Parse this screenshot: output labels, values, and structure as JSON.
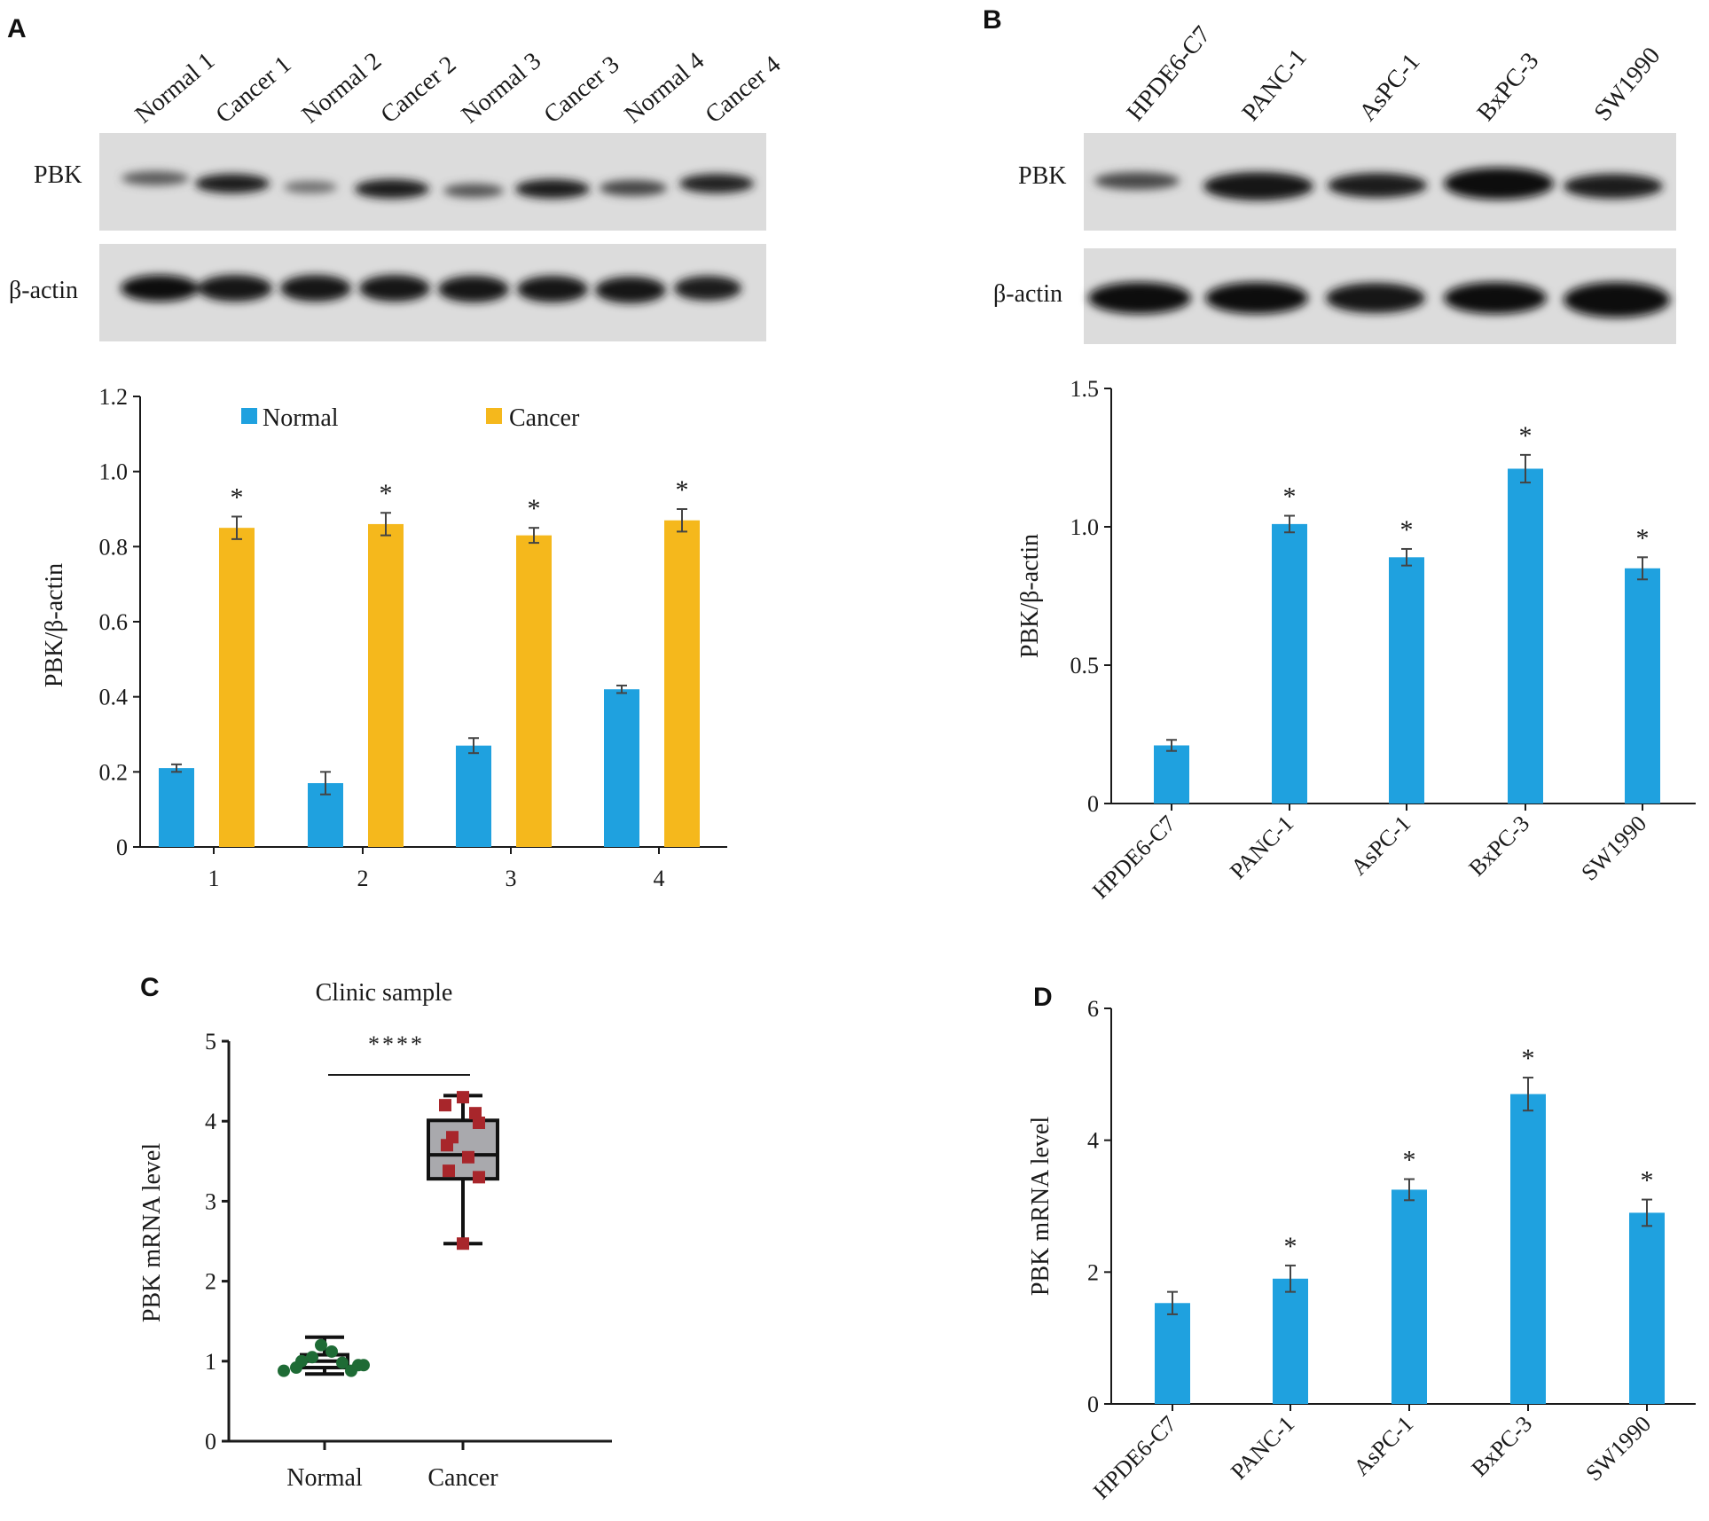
{
  "panels": {
    "A": {
      "letter": "A",
      "blot": {
        "lanes": [
          "Normal 1",
          "Cancer 1",
          "Normal 2",
          "Cancer 2",
          "Normal 3",
          "Cancer 3",
          "Normal 4",
          "Cancer 4"
        ],
        "rows": [
          "PBK",
          "β-actin"
        ]
      },
      "legend": [
        "Normal",
        "Cancer"
      ]
    },
    "B": {
      "letter": "B",
      "blot": {
        "lanes": [
          "HPDE6-C7",
          "PANC-1",
          "AsPC-1",
          "BxPC-3",
          "SW1990"
        ],
        "rows": [
          "PBK",
          "β-actin"
        ]
      }
    },
    "C": {
      "letter": "C"
    },
    "D": {
      "letter": "D"
    }
  },
  "colors": {
    "normal": "#1fa1df",
    "cancer": "#f5b81c",
    "box_fill": "#a9a9ad",
    "normal_dots": "#1e6b35",
    "cancer_dots": "#a8262b"
  },
  "chart_data": [
    {
      "panel": "A",
      "type": "bar",
      "title": "",
      "xlabel": "",
      "ylabel": "PBK/β-actin",
      "categories": [
        "1",
        "2",
        "3",
        "4"
      ],
      "series": [
        {
          "name": "Normal",
          "values": [
            0.21,
            0.17,
            0.27,
            0.42
          ],
          "errors": [
            0.01,
            0.03,
            0.02,
            0.01
          ]
        },
        {
          "name": "Cancer",
          "values": [
            0.85,
            0.86,
            0.83,
            0.87
          ],
          "errors": [
            0.03,
            0.03,
            0.02,
            0.03
          ]
        }
      ],
      "significance": [
        "*",
        "*",
        "*",
        "*"
      ],
      "ylim": [
        0,
        1.2
      ],
      "yticks": [
        "0",
        "0.2",
        "0.4",
        "0.6",
        "0.8",
        "1.0",
        "1.2"
      ],
      "legend": "top"
    },
    {
      "panel": "B",
      "type": "bar",
      "title": "",
      "xlabel": "",
      "ylabel": "PBK/β-actin",
      "categories": [
        "HPDE6-C7",
        "PANC-1",
        "AsPC-1",
        "BxPC-3",
        "SW1990"
      ],
      "values": [
        0.21,
        1.01,
        0.89,
        1.21,
        0.85
      ],
      "errors": [
        0.02,
        0.03,
        0.03,
        0.05,
        0.04
      ],
      "significance": [
        "",
        "*",
        "*",
        "*",
        "*"
      ],
      "ylim": [
        0,
        1.5
      ],
      "yticks": [
        "0",
        "0.5",
        "1.0",
        "1.5"
      ]
    },
    {
      "panel": "C",
      "type": "box",
      "title": "Clinic sample",
      "xlabel": "",
      "ylabel": "PBK mRNA level",
      "categories": [
        "Normal",
        "Cancer"
      ],
      "points": [
        [
          0.88,
          0.92,
          1.0,
          1.05,
          1.2,
          1.12,
          0.98,
          0.88,
          0.95,
          0.95
        ],
        [
          4.3,
          4.2,
          4.1,
          3.98,
          3.8,
          3.7,
          3.55,
          3.38,
          3.3,
          2.47
        ]
      ],
      "boxes": [
        {
          "min": 0.84,
          "q1": 0.92,
          "median": 1.0,
          "q3": 1.08,
          "max": 1.3
        },
        {
          "min": 2.47,
          "q1": 3.28,
          "median": 3.58,
          "q3": 4.01,
          "max": 4.32
        }
      ],
      "significance": "****",
      "ylim": [
        0,
        5
      ],
      "yticks": [
        "0",
        "1",
        "2",
        "3",
        "4",
        "5"
      ]
    },
    {
      "panel": "D",
      "type": "bar",
      "title": "",
      "xlabel": "",
      "ylabel": "PBK mRNA level",
      "categories": [
        "HPDE6-C7",
        "PANC-1",
        "AsPC-1",
        "BxPC-3",
        "SW1990"
      ],
      "values": [
        1.53,
        1.9,
        3.25,
        4.7,
        2.9
      ],
      "errors": [
        0.17,
        0.2,
        0.16,
        0.25,
        0.2
      ],
      "significance": [
        "",
        "*",
        "*",
        "*",
        "*"
      ],
      "ylim": [
        0,
        6
      ],
      "yticks": [
        "0",
        "2",
        "4",
        "6"
      ]
    }
  ]
}
